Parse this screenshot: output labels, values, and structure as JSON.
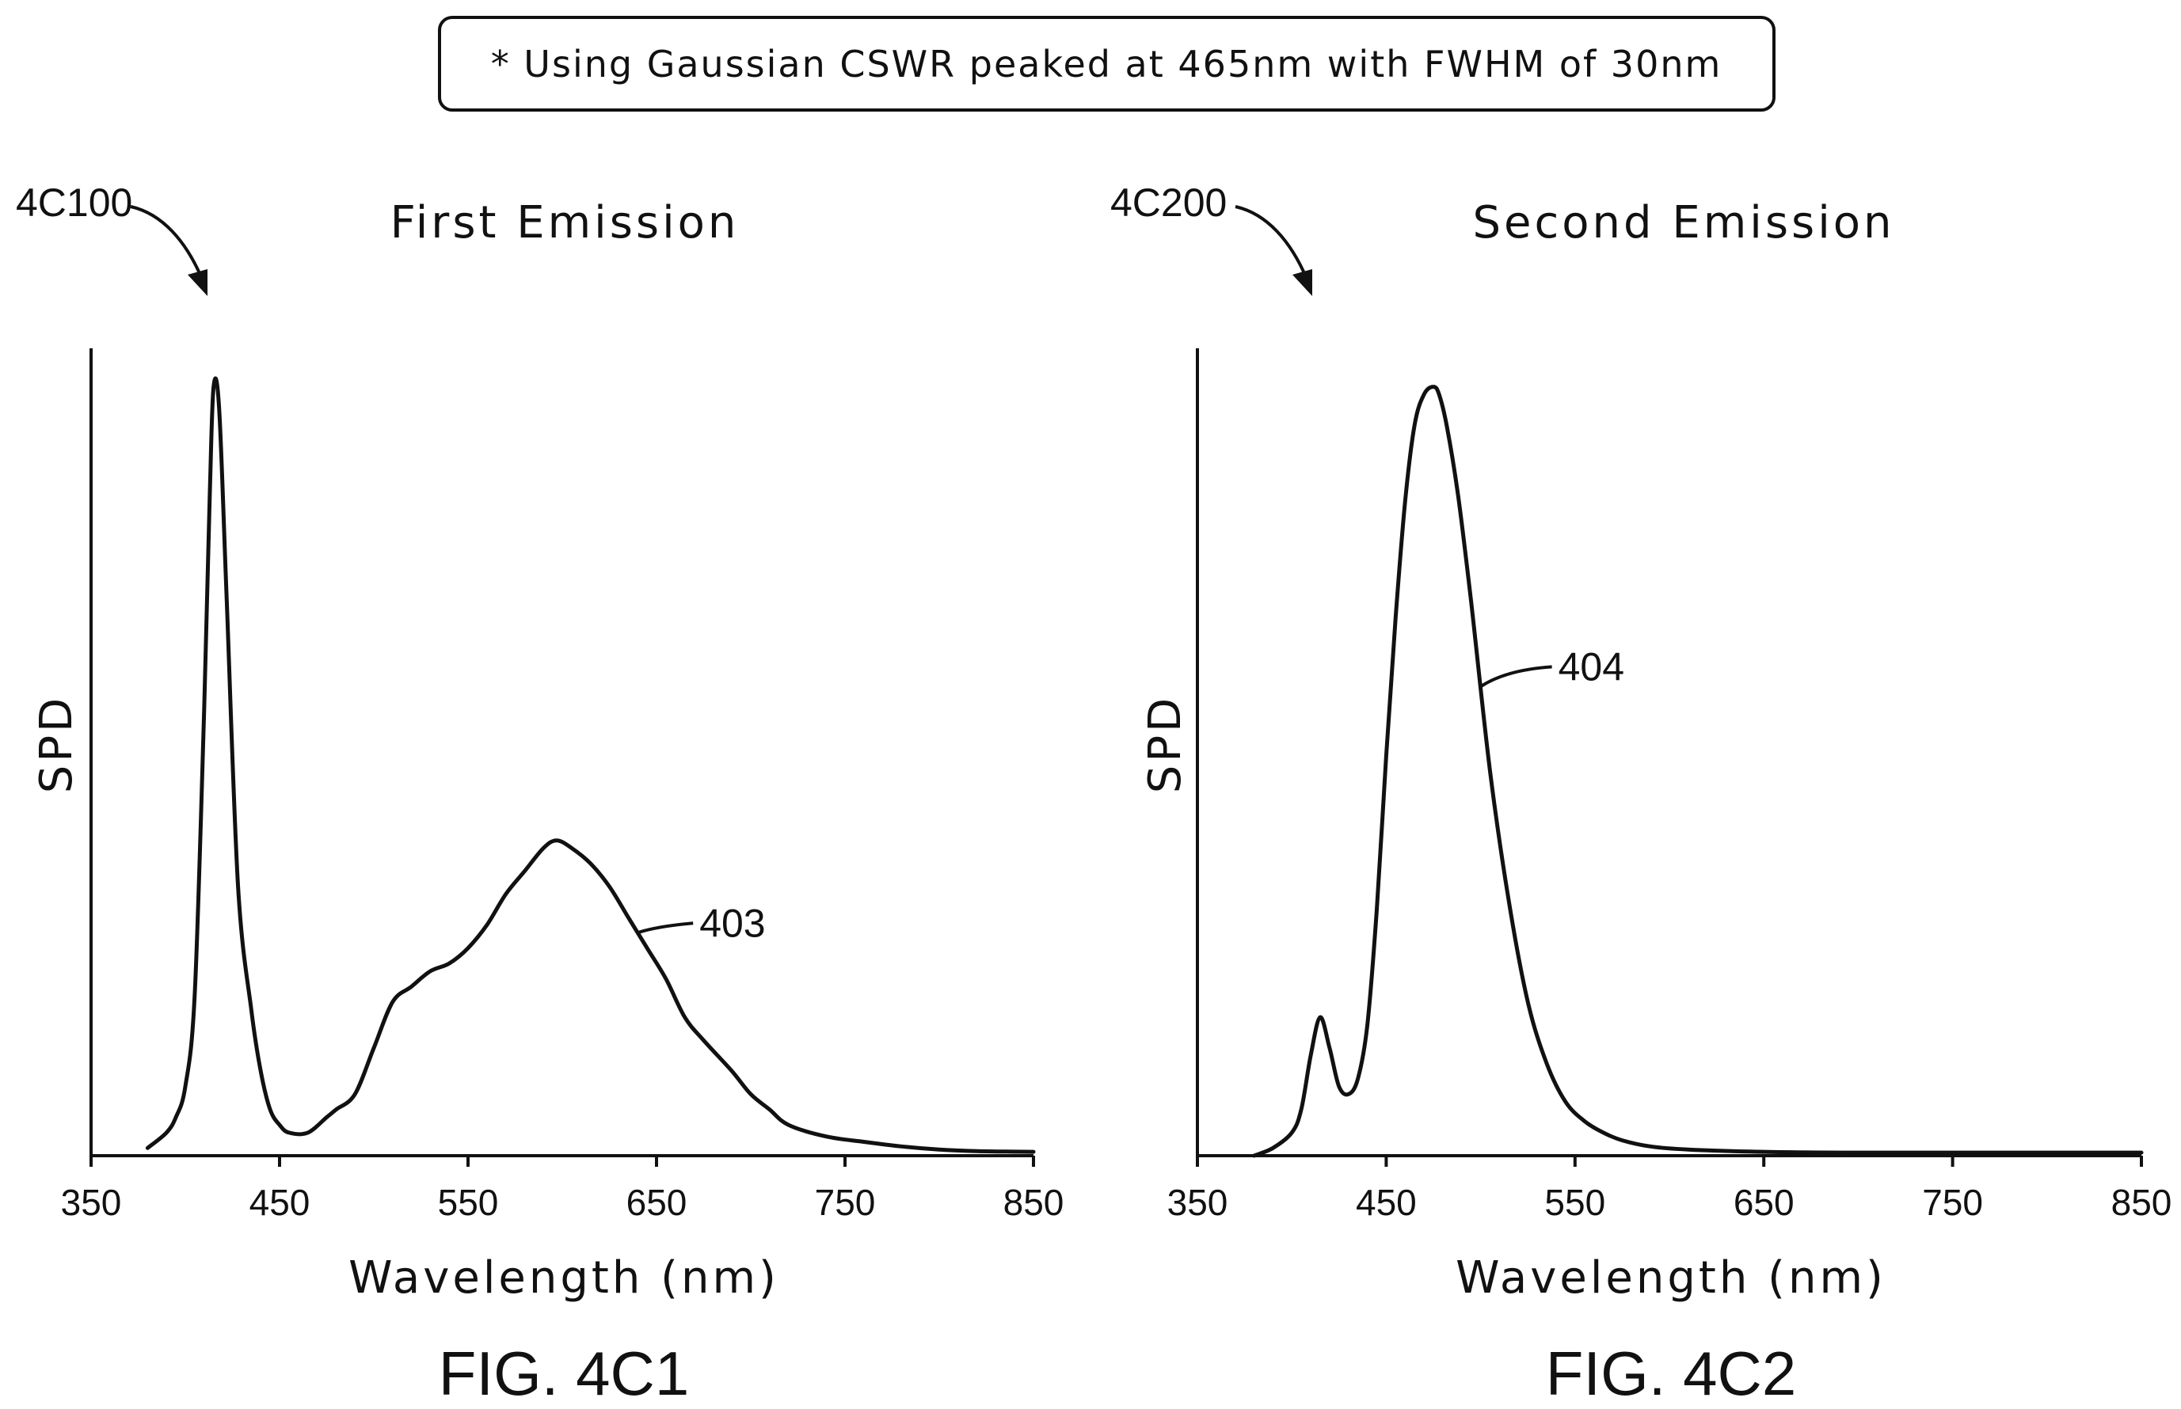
{
  "note": "* Using Gaussian CSWR peaked at 465nm with FWHM of 30nm",
  "chart_data": [
    {
      "type": "line",
      "ref": "4C100",
      "title": "First Emission",
      "xlabel": "Wavelength (nm)",
      "ylabel": "SPD",
      "xlim": [
        350,
        850
      ],
      "ylim": [
        0,
        1.05
      ],
      "xticks": [
        "350",
        "450",
        "550",
        "650",
        "750",
        "850"
      ],
      "caption": "FIG. 4C1",
      "series": [
        {
          "curve_label": "403",
          "label_at": 640,
          "x": [
            380,
            390,
            395,
            400,
            405,
            410,
            413,
            415,
            418,
            422,
            428,
            435,
            440,
            445,
            450,
            455,
            465,
            475,
            480,
            490,
            500,
            510,
            520,
            530,
            540,
            550,
            560,
            570,
            580,
            590,
            597,
            605,
            615,
            625,
            635,
            645,
            655,
            665,
            675,
            690,
            700,
            710,
            720,
            740,
            760,
            780,
            800,
            820,
            850
          ],
          "y": [
            0.01,
            0.03,
            0.05,
            0.09,
            0.21,
            0.58,
            0.86,
            1.0,
            0.97,
            0.72,
            0.35,
            0.19,
            0.11,
            0.06,
            0.04,
            0.03,
            0.03,
            0.05,
            0.06,
            0.08,
            0.14,
            0.2,
            0.22,
            0.24,
            0.25,
            0.27,
            0.3,
            0.34,
            0.37,
            0.4,
            0.41,
            0.4,
            0.38,
            0.35,
            0.31,
            0.27,
            0.23,
            0.18,
            0.15,
            0.11,
            0.08,
            0.06,
            0.04,
            0.025,
            0.018,
            0.012,
            0.008,
            0.006,
            0.005
          ]
        }
      ]
    },
    {
      "type": "line",
      "ref": "4C200",
      "title": "Second Emission",
      "xlabel": "Wavelength (nm)",
      "ylabel": "SPD",
      "xlim": [
        350,
        850
      ],
      "ylim": [
        0,
        1.05
      ],
      "xticks": [
        "350",
        "450",
        "550",
        "650",
        "750",
        "850"
      ],
      "caption": "FIG. 4C2",
      "series": [
        {
          "curve_label": "404",
          "label_at": 500,
          "x": [
            380,
            390,
            400,
            405,
            410,
            415,
            420,
            425,
            430,
            435,
            440,
            445,
            450,
            455,
            460,
            465,
            470,
            475,
            478,
            482,
            488,
            495,
            505,
            515,
            525,
            535,
            545,
            555,
            565,
            575,
            590,
            610,
            650,
            700,
            750,
            800,
            850
          ],
          "y": [
            0.0,
            0.01,
            0.03,
            0.06,
            0.13,
            0.18,
            0.14,
            0.09,
            0.08,
            0.1,
            0.17,
            0.32,
            0.52,
            0.7,
            0.85,
            0.95,
            0.99,
            1.0,
            0.99,
            0.95,
            0.86,
            0.72,
            0.5,
            0.33,
            0.2,
            0.12,
            0.07,
            0.045,
            0.03,
            0.02,
            0.012,
            0.008,
            0.005,
            0.004,
            0.004,
            0.004,
            0.004
          ]
        }
      ]
    }
  ]
}
